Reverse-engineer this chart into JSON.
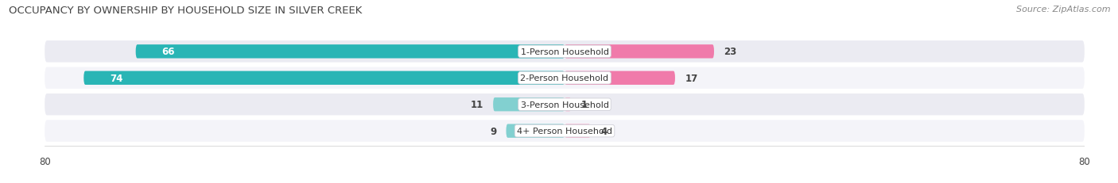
{
  "title": "OCCUPANCY BY OWNERSHIP BY HOUSEHOLD SIZE IN SILVER CREEK",
  "source": "Source: ZipAtlas.com",
  "categories": [
    "1-Person Household",
    "2-Person Household",
    "3-Person Household",
    "4+ Person Household"
  ],
  "owner_values": [
    66,
    74,
    11,
    9
  ],
  "renter_values": [
    23,
    17,
    1,
    4
  ],
  "owner_color_dark": "#29b5b5",
  "owner_color_light": "#82d0d0",
  "renter_color_dark": "#f07aaa",
  "renter_color_light": "#f5aac8",
  "row_bg_even": "#ebebf2",
  "row_bg_odd": "#f4f4f9",
  "xlim": 80,
  "title_fontsize": 9.5,
  "source_fontsize": 8,
  "tick_fontsize": 8.5,
  "bar_label_fontsize": 8.5,
  "legend_fontsize": 8.5,
  "cat_fontsize": 8,
  "bar_height": 0.52,
  "background_color": "#ffffff",
  "text_dark": "#444444",
  "text_label_white": "#ffffff"
}
